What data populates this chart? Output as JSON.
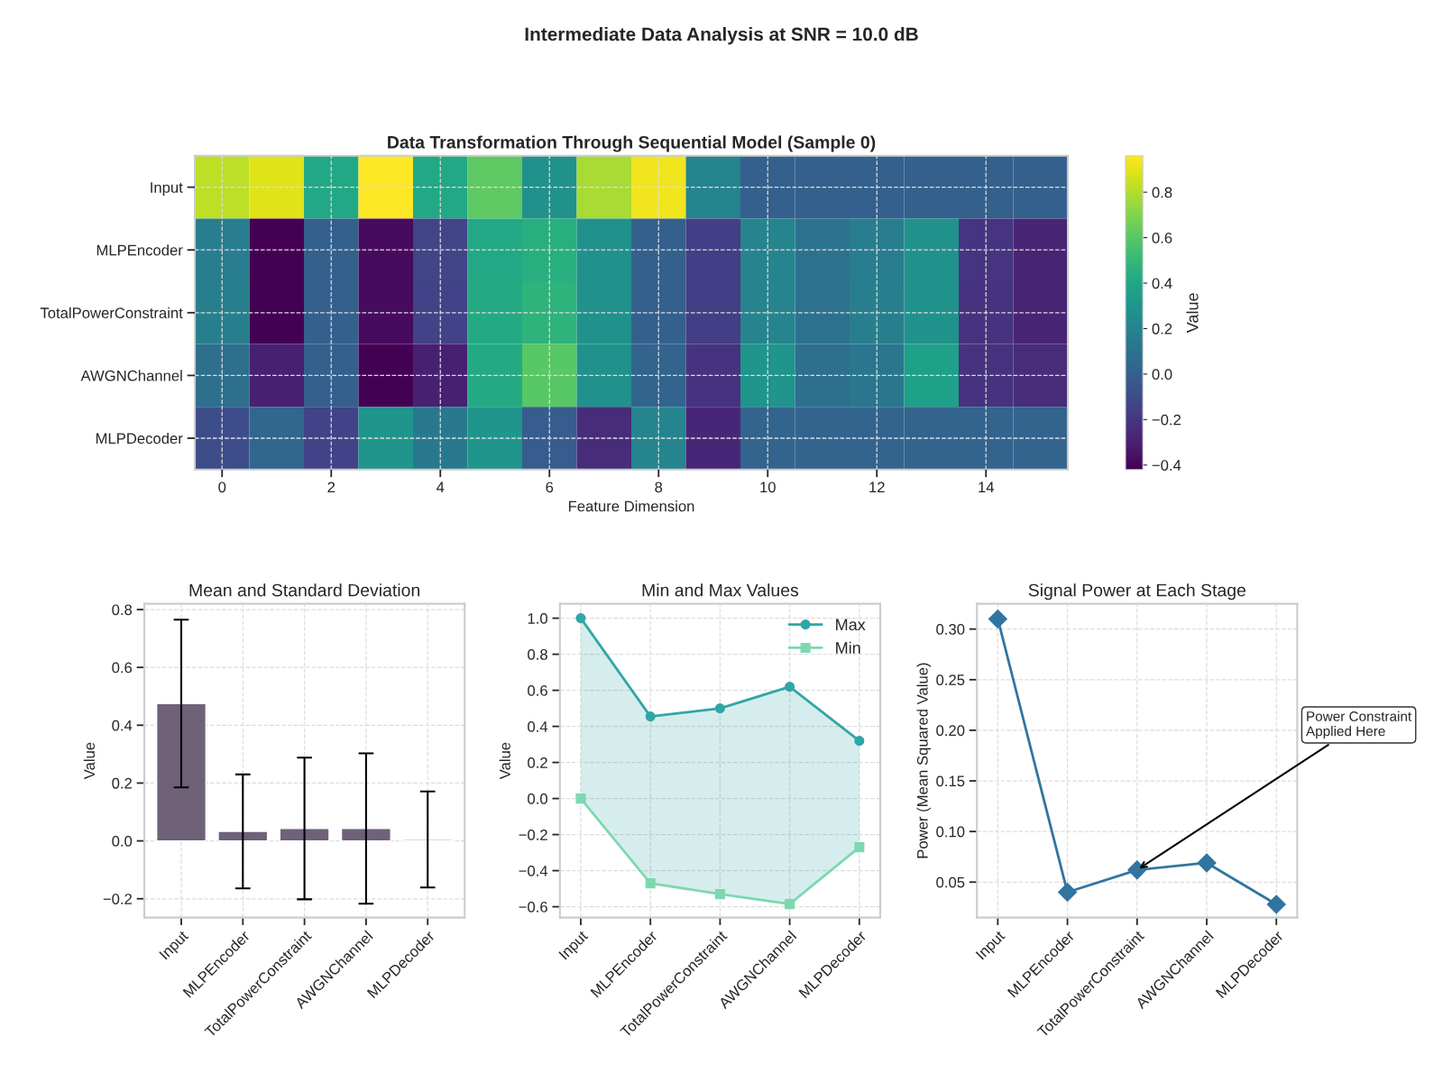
{
  "chart_data": [
    {
      "type": "heatmap",
      "title": "Intermediate Data Analysis at SNR = 10.0 dB",
      "subtitle": "Data Transformation Through Sequential Model (Sample 0)",
      "xlabel": "Feature Dimension",
      "clabel": "Value",
      "x": [
        0,
        1,
        2,
        3,
        4,
        5,
        6,
        7,
        8,
        9,
        10,
        11,
        12,
        13,
        14,
        15
      ],
      "y_categories": [
        "Input",
        "MLPEncoder",
        "TotalPowerConstraint",
        "AWGNChannel",
        "MLPDecoder"
      ],
      "cells": [
        [
          0.82,
          0.89,
          0.41,
          0.96,
          0.41,
          0.62,
          0.27,
          0.78,
          0.93,
          0.2,
          0.0,
          0.0,
          0.0,
          0.0,
          0.0,
          0.0
        ],
        [
          0.16,
          -0.42,
          0.0,
          -0.38,
          -0.14,
          0.41,
          0.45,
          0.27,
          0.0,
          -0.17,
          0.2,
          0.1,
          0.16,
          0.27,
          -0.21,
          -0.28
        ],
        [
          0.17,
          -0.42,
          0.0,
          -0.38,
          -0.15,
          0.42,
          0.47,
          0.27,
          0.0,
          -0.17,
          0.2,
          0.1,
          0.17,
          0.28,
          -0.22,
          -0.28
        ],
        [
          0.08,
          -0.3,
          0.0,
          -0.42,
          -0.3,
          0.42,
          0.6,
          0.27,
          0.02,
          -0.22,
          0.3,
          0.08,
          0.12,
          0.36,
          -0.22,
          -0.25
        ],
        [
          -0.1,
          0.03,
          -0.15,
          0.3,
          0.14,
          0.3,
          -0.02,
          -0.25,
          0.2,
          -0.27,
          0.02,
          0.02,
          0.02,
          0.02,
          0.02,
          0.02
        ]
      ],
      "xlim": [
        -0.5,
        15.5
      ],
      "xticks": [
        0,
        2,
        4,
        6,
        8,
        10,
        12,
        14
      ],
      "clim": [
        -0.42,
        0.96
      ],
      "cticks": [
        {
          "value": -0.4,
          "label": "−0.4"
        },
        {
          "value": -0.2,
          "label": "−0.2"
        },
        {
          "value": 0,
          "label": "0.0"
        },
        0.2,
        0.4,
        0.6,
        0.8
      ],
      "grid": true
    },
    {
      "type": "bar",
      "title": "Mean and Standard Deviation",
      "ylabel": "Value",
      "categories": [
        "Input",
        "MLPEncoder",
        "TotalPowerConstraint",
        "AWGNChannel",
        "MLPDecoder"
      ],
      "series": [
        {
          "color": "#6e6178",
          "values": [
            0.475,
            0.033,
            0.043,
            0.043,
            0.005
          ],
          "errors": [
            0.29,
            0.197,
            0.245,
            0.26,
            0.166
          ]
        }
      ],
      "ylim": [
        -0.265,
        0.82
      ],
      "yticks": [
        {
          "value": -0.2,
          "label": "−0.2"
        },
        {
          "value": 0,
          "label": "0.0"
        },
        0.2,
        0.4,
        0.6,
        0.8
      ],
      "grid": true
    },
    {
      "type": "line",
      "title": "Min and Max Values",
      "ylabel": "Value",
      "categories": [
        "Input",
        "MLPEncoder",
        "TotalPowerConstraint",
        "AWGNChannel",
        "MLPDecoder"
      ],
      "series": [
        {
          "name": "Max",
          "color": "#31a6a6",
          "marker": "circle",
          "values": [
            1.0,
            0.455,
            0.5,
            0.62,
            0.32
          ],
          "lower": [
            0.0,
            -0.47,
            -0.53,
            -0.585,
            -0.27
          ],
          "upper": [
            1.0,
            0.455,
            0.5,
            0.62,
            0.32
          ]
        },
        {
          "name": "Min",
          "color": "#7dd8b0",
          "marker": "square",
          "values": [
            0.0,
            -0.47,
            -0.53,
            -0.585,
            -0.27
          ]
        }
      ],
      "ylim": [
        -0.66,
        1.08
      ],
      "yticks": [
        {
          "value": -0.6,
          "label": "−0.6"
        },
        {
          "value": -0.4,
          "label": "−0.4"
        },
        {
          "value": -0.2,
          "label": "−0.2"
        },
        {
          "value": 0,
          "label": "0.0"
        },
        0.2,
        0.4,
        0.6,
        0.8,
        {
          "value": 1,
          "label": "1.0"
        }
      ],
      "grid": true,
      "legend": "top right"
    },
    {
      "type": "line",
      "title": "Signal Power at Each Stage",
      "ylabel": "Power (Mean Squared Value)",
      "categories": [
        "Input",
        "MLPEncoder",
        "TotalPowerConstraint",
        "AWGNChannel",
        "MLPDecoder"
      ],
      "series": [
        {
          "color": "#3274a1",
          "marker": "diamond",
          "values": [
            0.31,
            0.04,
            0.062,
            0.069,
            0.028
          ]
        }
      ],
      "ylim": [
        0.015,
        0.325
      ],
      "yticks": [
        0.05,
        {
          "value": 0.1,
          "label": "0.10"
        },
        0.15,
        {
          "value": 0.2,
          "label": "0.20"
        },
        0.25,
        {
          "value": 0.3,
          "label": "0.30"
        }
      ],
      "grid": true,
      "annotations": [
        {
          "text": "Power Constraint\nApplied Here",
          "x": "TotalPowerConstraint",
          "y": 0.062
        }
      ]
    }
  ]
}
